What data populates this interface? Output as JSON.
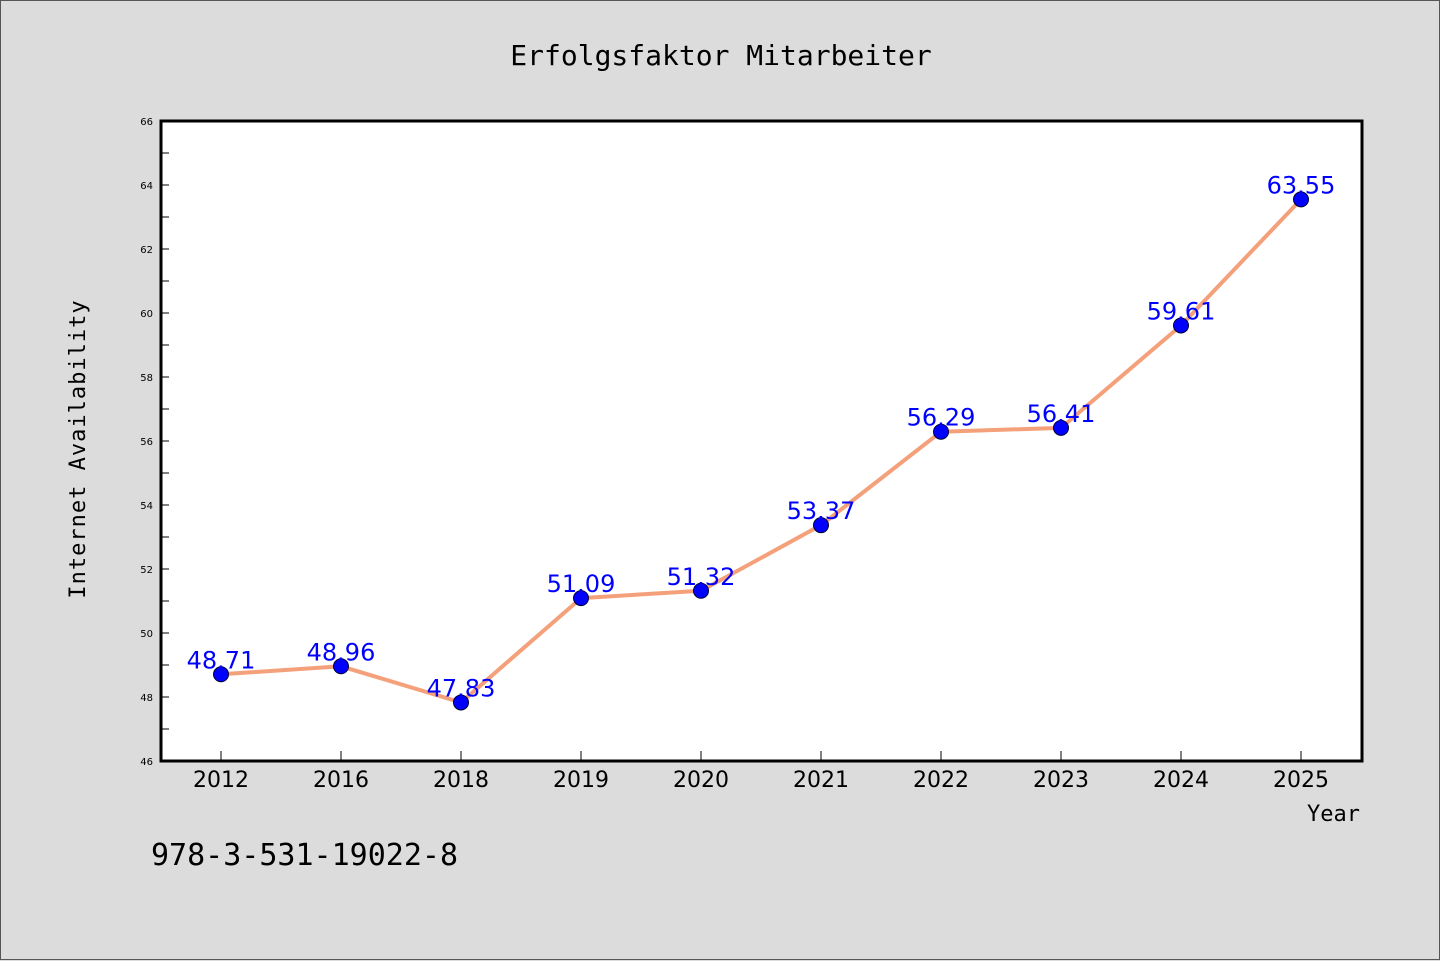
{
  "chart_data": {
    "type": "line",
    "title": "Erfolgsfaktor Mitarbeiter",
    "xlabel": "Year",
    "ylabel": "Internet Availability",
    "categories": [
      "2012",
      "2016",
      "2018",
      "2019",
      "2020",
      "2021",
      "2022",
      "2023",
      "2024",
      "2025"
    ],
    "series": [
      {
        "values": [
          48.71,
          48.96,
          47.83,
          51.09,
          51.32,
          53.37,
          56.29,
          56.41,
          59.61,
          63.55
        ],
        "data_labels": [
          "48.71",
          "48.96",
          "47.83",
          "51.09",
          "51.32",
          "53.37",
          "56.29",
          "56.41",
          "59.61",
          "63.55"
        ],
        "line_color": "#f4a07a",
        "marker_color": "#0000ff"
      }
    ],
    "ylim": [
      46,
      66
    ],
    "yticks": [
      "46",
      "48",
      "50",
      "52",
      "54",
      "56",
      "58",
      "60",
      "62",
      "64",
      "66"
    ],
    "grid": false,
    "background_color": "#dcdcdc",
    "plot_background": "#ffffff"
  },
  "footnote": "978-3-531-19022-8"
}
